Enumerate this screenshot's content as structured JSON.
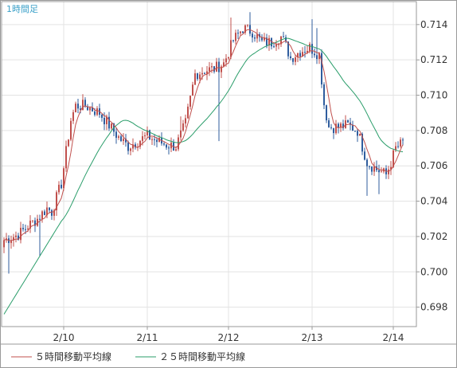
{
  "chart_data": {
    "type": "candlestick",
    "period_label": "1時間足",
    "y_ticks": [
      "0.714",
      "0.712",
      "0.710",
      "0.708",
      "0.706",
      "0.704",
      "0.702",
      "0.700",
      "0.698"
    ],
    "y_range": [
      0.6969,
      0.7153
    ],
    "x_ticks": [
      "2/10",
      "2/11",
      "2/12",
      "2/13",
      "2/14"
    ],
    "grid": true,
    "legend_position": "bottom",
    "colors": {
      "up": "#c0504d",
      "down": "#2f5d9e",
      "ma5": "#c0504d",
      "ma25": "#2a9d6a",
      "grid": "#e3e3e3",
      "frame": "#9a9a9a"
    },
    "series": [
      {
        "name": "５時間移動平均線",
        "key": "ma5"
      },
      {
        "name": "２５時間移動平均線",
        "key": "ma25"
      }
    ],
    "anchors": [
      [
        0,
        0.7018
      ],
      [
        6,
        0.7021
      ],
      [
        10,
        0.7026
      ],
      [
        14,
        0.703
      ],
      [
        18,
        0.7036
      ],
      [
        20,
        0.7034
      ],
      [
        24,
        0.705
      ],
      [
        26,
        0.7068
      ],
      [
        28,
        0.7086
      ],
      [
        30,
        0.7094
      ],
      [
        34,
        0.7094
      ],
      [
        40,
        0.709
      ],
      [
        44,
        0.7083
      ],
      [
        48,
        0.7076
      ],
      [
        52,
        0.7071
      ],
      [
        56,
        0.7074
      ],
      [
        60,
        0.7077
      ],
      [
        64,
        0.7074
      ],
      [
        68,
        0.7072
      ],
      [
        72,
        0.7071
      ],
      [
        76,
        0.7084
      ],
      [
        78,
        0.7098
      ],
      [
        80,
        0.7112
      ],
      [
        84,
        0.7114
      ],
      [
        88,
        0.7115
      ],
      [
        92,
        0.7118
      ],
      [
        96,
        0.7131
      ],
      [
        100,
        0.7138
      ],
      [
        104,
        0.7136
      ],
      [
        108,
        0.713
      ],
      [
        112,
        0.713
      ],
      [
        116,
        0.7133
      ],
      [
        118,
        0.7128
      ],
      [
        120,
        0.7121
      ],
      [
        124,
        0.7125
      ],
      [
        128,
        0.7127
      ],
      [
        132,
        0.7123
      ],
      [
        134,
        0.7095
      ],
      [
        136,
        0.7082
      ],
      [
        140,
        0.7082
      ],
      [
        144,
        0.7083
      ],
      [
        148,
        0.708
      ],
      [
        150,
        0.7071
      ],
      [
        152,
        0.7062
      ],
      [
        156,
        0.7058
      ],
      [
        160,
        0.7055
      ],
      [
        162,
        0.7062
      ],
      [
        164,
        0.707
      ],
      [
        166,
        0.7072
      ],
      [
        168,
        0.7075
      ]
    ],
    "spikes": [
      [
        2,
        0.6999
      ],
      [
        15,
        0.7009
      ],
      [
        31,
        0.7098
      ],
      [
        74,
        0.7088
      ],
      [
        90,
        0.7074
      ],
      [
        95,
        0.7144
      ],
      [
        103,
        0.7147
      ],
      [
        129,
        0.7143
      ],
      [
        131,
        0.7138
      ],
      [
        152,
        0.7043
      ],
      [
        157,
        0.7044
      ]
    ]
  },
  "legend": {
    "ma5_label": "５時間移動平均線",
    "ma25_label": "２５時間移動平均線"
  }
}
